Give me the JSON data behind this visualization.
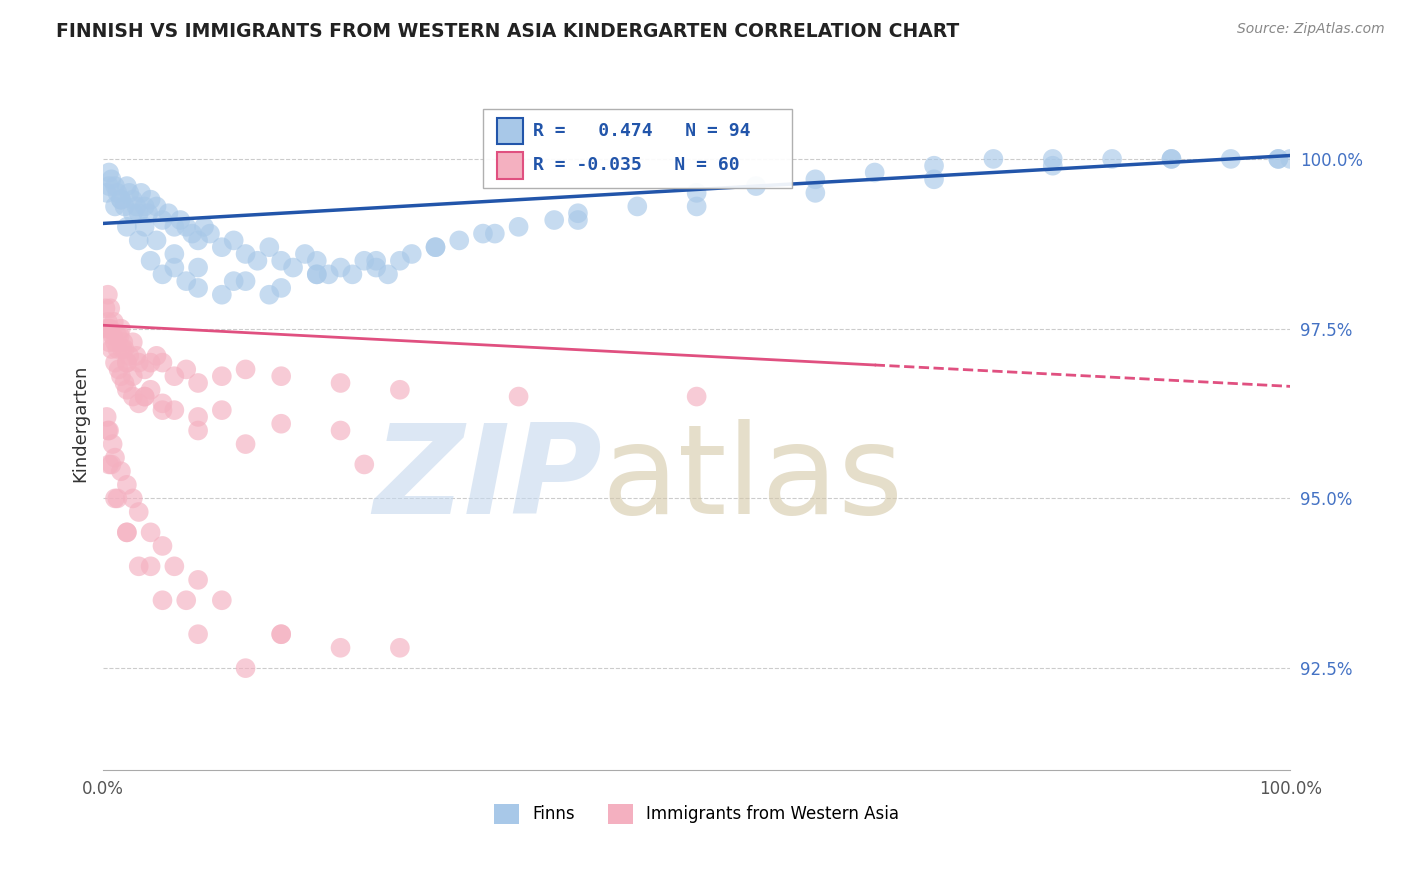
{
  "title": "FINNISH VS IMMIGRANTS FROM WESTERN ASIA KINDERGARTEN CORRELATION CHART",
  "source": "Source: ZipAtlas.com",
  "ylabel": "Kindergarten",
  "finns_color": "#a8c8e8",
  "immigrants_color": "#f4b0c0",
  "finns_line_color": "#2255aa",
  "immigrants_line_color": "#e05080",
  "xlim": [
    0.0,
    100.0
  ],
  "ylim": [
    91.0,
    101.2
  ],
  "yticks": [
    92.5,
    95.0,
    97.5,
    100.0
  ],
  "ytick_labels": [
    "92.5%",
    "95.0%",
    "97.5%",
    "100.0%"
  ],
  "finns_x": [
    0.3,
    0.5,
    0.7,
    1.0,
    1.2,
    1.5,
    1.8,
    2.0,
    2.2,
    2.5,
    2.8,
    3.0,
    3.2,
    3.5,
    3.8,
    4.0,
    4.5,
    5.0,
    5.5,
    6.0,
    6.5,
    7.0,
    7.5,
    8.0,
    8.5,
    9.0,
    10.0,
    11.0,
    12.0,
    13.0,
    14.0,
    15.0,
    16.0,
    17.0,
    18.0,
    19.0,
    20.0,
    21.0,
    22.0,
    23.0,
    24.0,
    25.0,
    26.0,
    28.0,
    30.0,
    32.0,
    35.0,
    38.0,
    40.0,
    45.0,
    50.0,
    55.0,
    60.0,
    65.0,
    70.0,
    75.0,
    80.0,
    85.0,
    90.0,
    95.0,
    99.0,
    100.0,
    1.0,
    2.0,
    3.0,
    4.0,
    5.0,
    6.0,
    7.0,
    8.0,
    10.0,
    12.0,
    15.0,
    18.0,
    0.5,
    1.5,
    2.5,
    3.5,
    4.5,
    6.0,
    8.0,
    11.0,
    14.0,
    18.0,
    23.0,
    28.0,
    33.0,
    40.0,
    50.0,
    60.0,
    70.0,
    80.0,
    90.0,
    99.0
  ],
  "finns_y": [
    99.5,
    99.8,
    99.7,
    99.6,
    99.5,
    99.4,
    99.3,
    99.6,
    99.5,
    99.4,
    99.3,
    99.2,
    99.5,
    99.3,
    99.2,
    99.4,
    99.3,
    99.1,
    99.2,
    99.0,
    99.1,
    99.0,
    98.9,
    98.8,
    99.0,
    98.9,
    98.7,
    98.8,
    98.6,
    98.5,
    98.7,
    98.5,
    98.4,
    98.6,
    98.5,
    98.3,
    98.4,
    98.3,
    98.5,
    98.4,
    98.3,
    98.5,
    98.6,
    98.7,
    98.8,
    98.9,
    99.0,
    99.1,
    99.2,
    99.3,
    99.5,
    99.6,
    99.7,
    99.8,
    99.9,
    100.0,
    100.0,
    100.0,
    100.0,
    100.0,
    100.0,
    100.0,
    99.3,
    99.0,
    98.8,
    98.5,
    98.3,
    98.4,
    98.2,
    98.1,
    98.0,
    98.2,
    98.1,
    98.3,
    99.6,
    99.4,
    99.2,
    99.0,
    98.8,
    98.6,
    98.4,
    98.2,
    98.0,
    98.3,
    98.5,
    98.7,
    98.9,
    99.1,
    99.3,
    99.5,
    99.7,
    99.9,
    100.0,
    100.0
  ],
  "imm_x": [
    0.2,
    0.4,
    0.5,
    0.6,
    0.8,
    1.0,
    1.2,
    1.4,
    1.5,
    1.7,
    1.8,
    2.0,
    2.2,
    2.5,
    2.8,
    3.0,
    3.5,
    4.0,
    4.5,
    5.0,
    6.0,
    7.0,
    8.0,
    10.0,
    12.0,
    15.0,
    20.0,
    25.0,
    35.0,
    50.0,
    0.3,
    0.5,
    0.7,
    1.0,
    1.3,
    1.5,
    1.8,
    2.0,
    2.5,
    3.0,
    3.5,
    4.0,
    5.0,
    6.0,
    8.0,
    10.0,
    15.0,
    20.0,
    0.4,
    0.6,
    0.9,
    1.2,
    1.6,
    2.0,
    2.5,
    3.5,
    5.0,
    8.0,
    12.0,
    22.0
  ],
  "imm_y": [
    97.8,
    97.6,
    97.5,
    97.5,
    97.4,
    97.3,
    97.2,
    97.4,
    97.5,
    97.3,
    97.2,
    97.0,
    97.1,
    97.3,
    97.1,
    97.0,
    96.9,
    97.0,
    97.1,
    97.0,
    96.8,
    96.9,
    96.7,
    96.8,
    96.9,
    96.8,
    96.7,
    96.6,
    96.5,
    96.5,
    97.5,
    97.3,
    97.2,
    97.0,
    96.9,
    96.8,
    96.7,
    96.6,
    96.5,
    96.4,
    96.5,
    96.6,
    96.4,
    96.3,
    96.2,
    96.3,
    96.1,
    96.0,
    98.0,
    97.8,
    97.6,
    97.4,
    97.2,
    97.0,
    96.8,
    96.5,
    96.3,
    96.0,
    95.8,
    95.5
  ],
  "imm_x_low": [
    0.3,
    0.5,
    0.8,
    1.0,
    1.5,
    2.0,
    2.5,
    3.0,
    4.0,
    5.0,
    6.0,
    8.0,
    10.0,
    15.0,
    20.0,
    0.5,
    1.0,
    2.0,
    3.0,
    5.0,
    8.0,
    12.0,
    0.4,
    0.7,
    1.2,
    2.0,
    4.0,
    7.0,
    15.0,
    25.0
  ],
  "imm_y_low": [
    96.2,
    96.0,
    95.8,
    95.6,
    95.4,
    95.2,
    95.0,
    94.8,
    94.5,
    94.3,
    94.0,
    93.8,
    93.5,
    93.0,
    92.8,
    95.5,
    95.0,
    94.5,
    94.0,
    93.5,
    93.0,
    92.5,
    96.0,
    95.5,
    95.0,
    94.5,
    94.0,
    93.5,
    93.0,
    92.8
  ]
}
